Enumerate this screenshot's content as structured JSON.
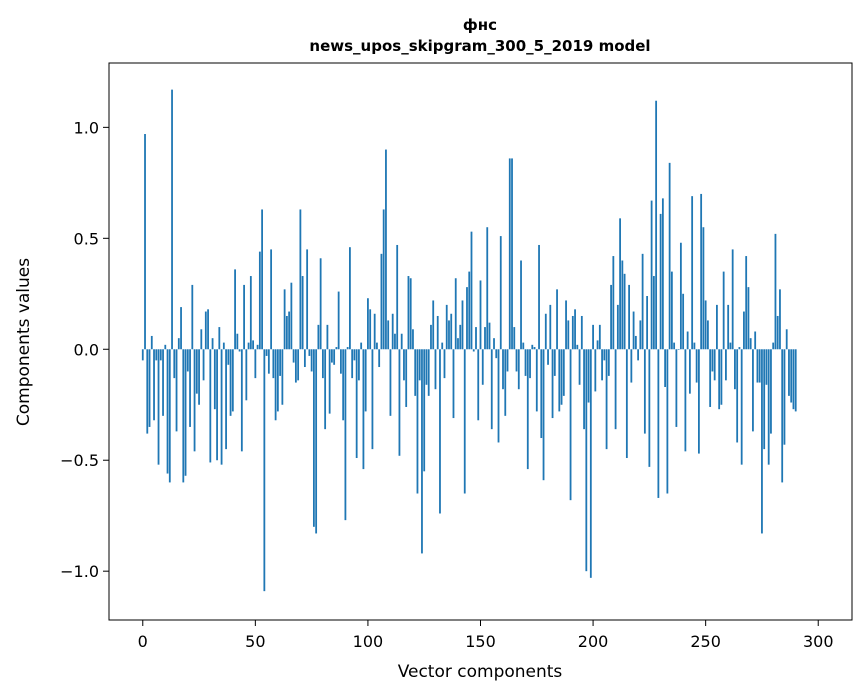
{
  "chart_data": {
    "type": "bar",
    "title_line1": "фнс",
    "title_line2": "news_upos_skipgram_300_5_2019 model",
    "xlabel": "Vector components",
    "ylabel": "Components values",
    "xlim": [
      -15,
      315
    ],
    "ylim": [
      -1.22,
      1.29
    ],
    "xticks": [
      0,
      50,
      100,
      150,
      200,
      250,
      300
    ],
    "yticks": [
      1.0,
      0.5,
      0.0,
      -0.5,
      -1.0
    ],
    "xtick_labels": [
      "0",
      "50",
      "100",
      "150",
      "200",
      "250",
      "300"
    ],
    "ytick_labels": [
      "1.0",
      "0.5",
      "0.0",
      "−0.5",
      "−1.0"
    ],
    "bar_color": "#1f77b4",
    "series": [
      {
        "name": "фнс",
        "values": [
          -0.05,
          0.97,
          -0.38,
          -0.35,
          0.06,
          -0.32,
          -0.05,
          -0.52,
          -0.05,
          -0.3,
          0.02,
          -0.56,
          -0.6,
          1.17,
          -0.13,
          -0.37,
          0.05,
          0.19,
          -0.6,
          -0.57,
          -0.1,
          -0.35,
          0.29,
          -0.46,
          -0.2,
          -0.25,
          0.09,
          -0.14,
          0.17,
          0.18,
          -0.51,
          0.05,
          -0.27,
          -0.5,
          0.1,
          -0.52,
          0.03,
          -0.45,
          -0.07,
          -0.3,
          -0.28,
          0.36,
          0.07,
          -0.01,
          -0.46,
          0.29,
          -0.23,
          0.03,
          0.33,
          0.04,
          -0.13,
          0.02,
          0.44,
          0.63,
          -1.09,
          -0.03,
          -0.11,
          0.45,
          -0.13,
          -0.32,
          -0.28,
          -0.12,
          -0.25,
          0.27,
          0.15,
          0.17,
          0.3,
          -0.06,
          -0.15,
          -0.14,
          0.63,
          0.33,
          -0.08,
          0.45,
          -0.03,
          -0.1,
          -0.8,
          -0.83,
          0.11,
          0.41,
          -0.13,
          -0.36,
          0.11,
          -0.29,
          -0.06,
          -0.07,
          0.01,
          0.26,
          -0.11,
          -0.32,
          -0.77,
          0.01,
          0.46,
          -0.13,
          -0.05,
          -0.49,
          -0.14,
          0.03,
          -0.54,
          -0.28,
          0.23,
          0.18,
          -0.45,
          0.16,
          0.03,
          -0.08,
          0.43,
          0.63,
          0.9,
          0.13,
          -0.3,
          0.16,
          0.07,
          0.47,
          -0.48,
          0.07,
          -0.14,
          -0.26,
          0.33,
          0.32,
          0.09,
          -0.21,
          -0.65,
          -0.14,
          -0.92,
          -0.55,
          -0.16,
          -0.21,
          0.11,
          0.22,
          -0.18,
          0.15,
          -0.74,
          0.03,
          -0.13,
          0.2,
          0.13,
          0.16,
          -0.31,
          0.32,
          0.05,
          0.11,
          0.22,
          -0.65,
          0.28,
          0.35,
          0.53,
          -0.01,
          0.1,
          -0.32,
          0.31,
          -0.16,
          0.1,
          0.55,
          0.12,
          -0.36,
          0.05,
          -0.04,
          -0.42,
          0.51,
          -0.18,
          -0.3,
          -0.1,
          0.86,
          0.86,
          0.1,
          -0.1,
          -0.18,
          0.4,
          0.03,
          -0.12,
          -0.54,
          -0.13,
          0.02,
          0.01,
          -0.28,
          0.47,
          -0.4,
          -0.59,
          0.16,
          -0.07,
          0.2,
          -0.31,
          -0.12,
          0.27,
          -0.28,
          -0.25,
          -0.21,
          0.22,
          0.13,
          -0.68,
          0.15,
          0.18,
          0.02,
          -0.16,
          0.15,
          -0.36,
          -1.0,
          -0.24,
          -1.03,
          0.11,
          -0.19,
          0.04,
          0.11,
          -0.14,
          -0.05,
          -0.45,
          -0.12,
          0.29,
          0.42,
          -0.36,
          0.2,
          0.59,
          0.4,
          0.34,
          -0.49,
          0.29,
          -0.15,
          0.17,
          0.06,
          -0.05,
          0.13,
          0.43,
          -0.38,
          0.24,
          -0.53,
          0.67,
          0.33,
          1.12,
          -0.67,
          0.61,
          0.68,
          -0.17,
          -0.65,
          0.84,
          0.35,
          0.03,
          -0.35,
          0.0,
          0.48,
          0.25,
          -0.46,
          0.08,
          -0.2,
          0.69,
          0.03,
          -0.15,
          -0.47,
          0.7,
          0.55,
          0.22,
          0.13,
          -0.26,
          -0.1,
          -0.14,
          0.2,
          -0.27,
          -0.25,
          0.35,
          -0.14,
          0.2,
          0.03,
          0.45,
          -0.18,
          -0.42,
          0.01,
          -0.52,
          0.17,
          0.42,
          0.28,
          0.05,
          -0.37,
          0.08,
          -0.15,
          -0.15,
          -0.83,
          -0.45,
          -0.16,
          -0.52,
          -0.38,
          0.03,
          0.52,
          0.15,
          0.27,
          -0.6,
          -0.43,
          0.09,
          -0.21,
          -0.24,
          -0.27,
          -0.28
        ]
      }
    ]
  }
}
